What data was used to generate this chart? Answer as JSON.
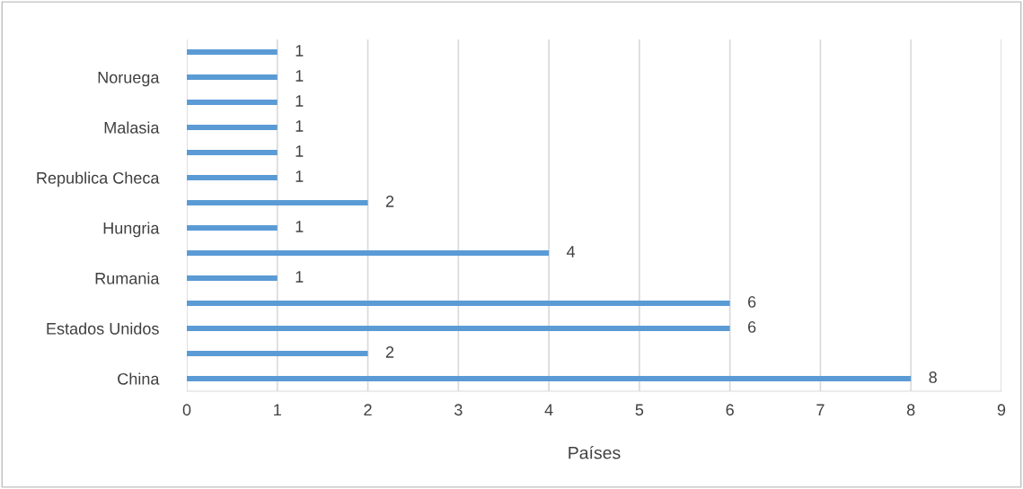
{
  "chart_data": {
    "type": "bar",
    "orientation": "horizontal",
    "xlabel": "Países",
    "categories": [
      null,
      "Noruega",
      null,
      "Malasia",
      null,
      "Republica Checa",
      null,
      "Hungria",
      null,
      "Rumania",
      null,
      "Estados Unidos",
      null,
      "China"
    ],
    "values": [
      1,
      1,
      1,
      1,
      1,
      1,
      2,
      1,
      4,
      1,
      6,
      6,
      2,
      8
    ],
    "color": "#5b9bd5",
    "xlim": [
      0,
      9
    ],
    "xticks": [
      0,
      1,
      2,
      3,
      4,
      5,
      6,
      7,
      8,
      9
    ],
    "grid": "x",
    "data_labels": true
  }
}
